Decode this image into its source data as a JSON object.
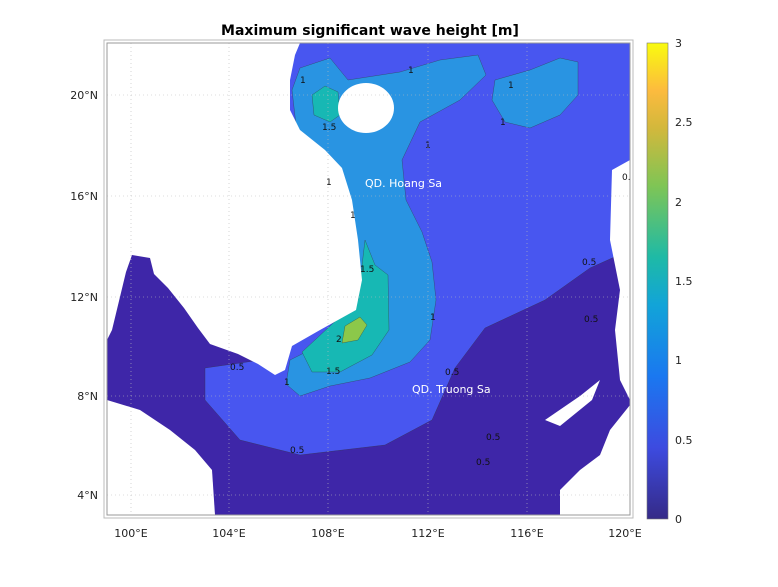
{
  "title": "Maximum significant wave height [m]",
  "x_ticks": [
    "100°E",
    "104°E",
    "108°E",
    "112°E",
    "116°E",
    "120°E"
  ],
  "y_ticks": [
    "20°N",
    "16°N",
    "12°N",
    "8°N",
    "4°N"
  ],
  "colorbar": {
    "ticks": [
      "0",
      "0.5",
      "1",
      "1.5",
      "2",
      "2.5",
      "3"
    ],
    "range": [
      0,
      3
    ],
    "colormap": "parula"
  },
  "colors": {
    "lt0_5": "#3e26a8",
    "c0_5_1": "#4856f0",
    "c1_1_5": "#2994e2",
    "c1_5_2": "#17b8b4",
    "c2_2_5": "#8cc84a",
    "land": "#ffffff"
  },
  "place_labels": {
    "hoang_sa": "QD. Hoang Sa",
    "truong_sa": "QD. Truong Sa"
  },
  "contour_labels": {
    "half": "0.5",
    "one": "1",
    "one_half": "1.5",
    "two": "2"
  }
}
